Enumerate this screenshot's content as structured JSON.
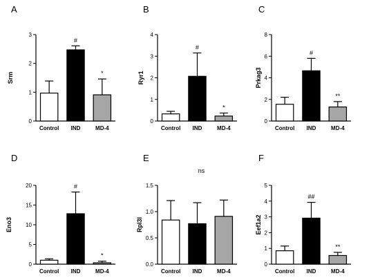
{
  "chart_data": [
    {
      "type": "bar",
      "panel": "A",
      "ylabel": "Srm",
      "categories": [
        "Control",
        "IND",
        "MD-4"
      ],
      "values": [
        0.97,
        2.47,
        0.91
      ],
      "errors": [
        0.42,
        0.14,
        0.55
      ],
      "significance": [
        "",
        "#",
        "*"
      ],
      "bar_colors": [
        "#ffffff",
        "#000000",
        "#a6a6a6"
      ],
      "ylim": [
        0,
        3
      ],
      "yticks": [
        "0",
        "1",
        "2",
        "3"
      ]
    },
    {
      "type": "bar",
      "panel": "B",
      "ylabel": "Ryr1",
      "categories": [
        "Control",
        "IND",
        "MD-4"
      ],
      "values": [
        0.33,
        2.07,
        0.23
      ],
      "errors": [
        0.12,
        1.08,
        0.14
      ],
      "significance": [
        "",
        "#",
        "*"
      ],
      "bar_colors": [
        "#ffffff",
        "#000000",
        "#a6a6a6"
      ],
      "ylim": [
        0,
        4
      ],
      "yticks": [
        "0",
        "1",
        "2",
        "3",
        "4"
      ]
    },
    {
      "type": "bar",
      "panel": "C",
      "ylabel": "Prkag3",
      "categories": [
        "Control",
        "IND",
        "MD-4"
      ],
      "values": [
        1.55,
        4.65,
        1.3
      ],
      "errors": [
        0.65,
        1.15,
        0.5
      ],
      "significance": [
        "",
        "#",
        "**"
      ],
      "bar_colors": [
        "#ffffff",
        "#000000",
        "#a6a6a6"
      ],
      "ylim": [
        0,
        8
      ],
      "yticks": [
        "0",
        "2",
        "4",
        "6",
        "8"
      ]
    },
    {
      "type": "bar",
      "panel": "D",
      "ylabel": "Eno3",
      "categories": [
        "Control",
        "IND",
        "MD-4"
      ],
      "values": [
        1.0,
        12.8,
        0.35
      ],
      "errors": [
        0.35,
        5.5,
        0.4
      ],
      "significance": [
        "",
        "#",
        "*"
      ],
      "bar_colors": [
        "#ffffff",
        "#000000",
        "#a6a6a6"
      ],
      "ylim": [
        0,
        20
      ],
      "yticks": [
        "0",
        "5",
        "10",
        "15",
        "20"
      ]
    },
    {
      "type": "bar",
      "panel": "E",
      "ylabel": "Rpl3l",
      "categories": [
        "Control",
        "IND",
        "MD-4"
      ],
      "values": [
        0.84,
        0.77,
        0.91
      ],
      "errors": [
        0.37,
        0.4,
        0.31
      ],
      "significance": [
        "",
        "",
        ""
      ],
      "title": "ns",
      "bar_colors": [
        "#ffffff",
        "#000000",
        "#a6a6a6"
      ],
      "ylim": [
        0,
        1.5
      ],
      "yticks": [
        "0.0",
        "0.5",
        "1.0",
        "1.5"
      ]
    },
    {
      "type": "bar",
      "panel": "F",
      "ylabel": "Eef1a2",
      "categories": [
        "Control",
        "IND",
        "MD-4"
      ],
      "values": [
        0.85,
        2.92,
        0.55
      ],
      "errors": [
        0.3,
        1.0,
        0.2
      ],
      "significance": [
        "",
        "##",
        "**"
      ],
      "bar_colors": [
        "#ffffff",
        "#000000",
        "#a6a6a6"
      ],
      "ylim": [
        0,
        5
      ],
      "yticks": [
        "0",
        "1",
        "2",
        "3",
        "4",
        "5"
      ]
    }
  ]
}
